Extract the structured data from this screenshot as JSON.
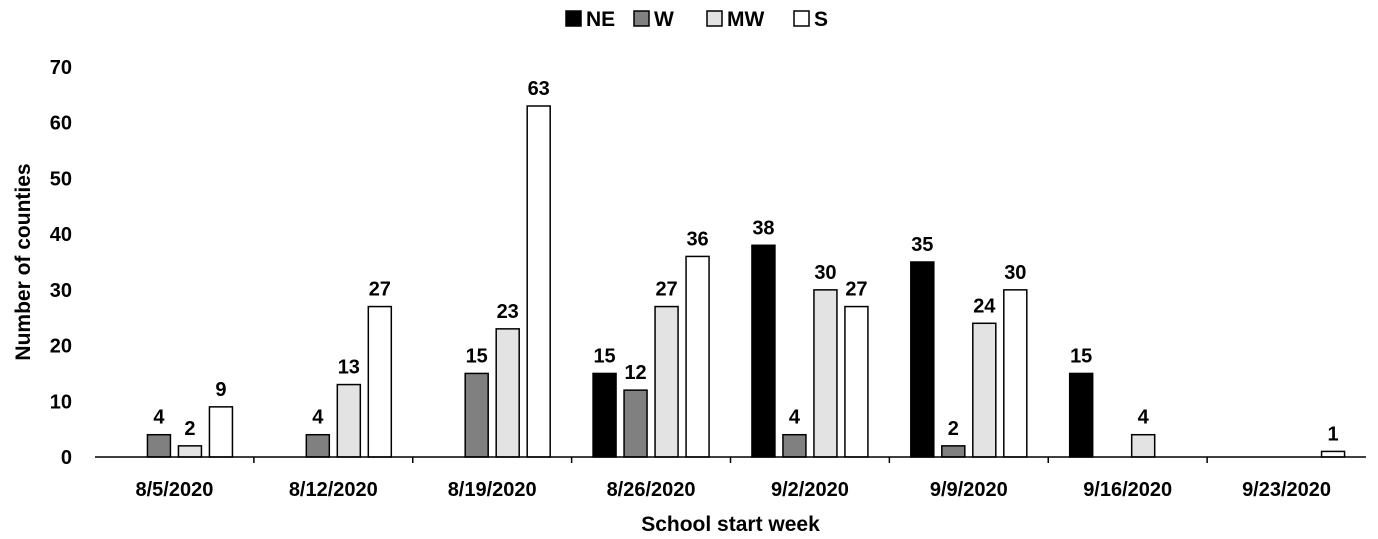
{
  "chart_data": {
    "type": "bar",
    "xlabel": "School start week",
    "ylabel": "Number of counties",
    "ylim": [
      0,
      70
    ],
    "yticks": [
      0,
      10,
      20,
      30,
      40,
      50,
      60,
      70
    ],
    "legend_position": "top-center",
    "grid": false,
    "categories": [
      "8/5/2020",
      "8/12/2020",
      "8/19/2020",
      "8/26/2020",
      "9/2/2020",
      "9/9/2020",
      "9/16/2020",
      "9/23/2020"
    ],
    "series": [
      {
        "name": "NE",
        "color": "#000000",
        "values": [
          0,
          0,
          0,
          15,
          38,
          35,
          15,
          0
        ]
      },
      {
        "name": "W",
        "color": "#808080",
        "values": [
          4,
          4,
          15,
          12,
          4,
          2,
          0,
          0
        ]
      },
      {
        "name": "MW",
        "color": "#e3e3e3",
        "values": [
          2,
          13,
          23,
          27,
          30,
          24,
          4,
          0
        ]
      },
      {
        "name": "S",
        "color": "#ffffff",
        "values": [
          9,
          27,
          63,
          36,
          27,
          30,
          0,
          1
        ]
      }
    ]
  }
}
